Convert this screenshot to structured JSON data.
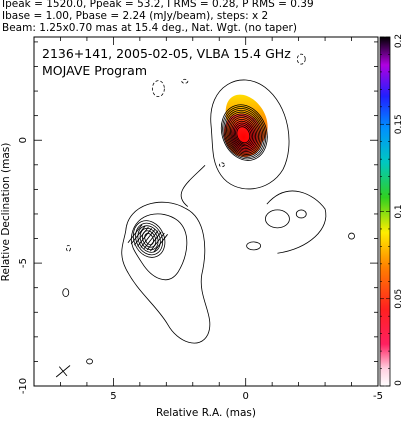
{
  "header": {
    "line1": "Ipeak = 1520.0, Ppeak = 53.2, I RMS = 0.28, P RMS = 0.39",
    "line2": "Ibase = 1.00, Pbase = 2.24 (mJy/beam), steps: x 2",
    "line3": "Beam: 1.25x0.70 mas at 15.4 deg., Nat. Wgt. (no taper)"
  },
  "chart_data": {
    "type": "heatmap",
    "title": "2136+141, 2005-02-05, VLBA 15.4 GHz",
    "subtitle": "MOJAVE Program",
    "xlabel": "Relative R.A. (mas)",
    "ylabel": "Relative Declination (mas)",
    "xlim": [
      8,
      -5
    ],
    "ylim": [
      -10,
      4.2
    ],
    "x_ticks": [
      5,
      0,
      -5
    ],
    "y_ticks": [
      0,
      -5,
      -10
    ],
    "x_tick_labels": [
      "5",
      "0",
      "-5"
    ],
    "y_tick_labels": [
      "0",
      "-5",
      "-10"
    ],
    "colorbar": {
      "min": 0,
      "max": 0.2,
      "ticks": [
        0,
        0.05,
        0.1,
        0.15,
        0.2
      ],
      "tick_labels": [
        "0",
        "0.05",
        "0.1",
        "0.15",
        "0.2"
      ]
    },
    "core": {
      "x": 0.1,
      "y": 0.2
    },
    "secondary_component": {
      "x": 3.7,
      "y": -4.0
    },
    "beam": {
      "major": 1.25,
      "minor": 0.7,
      "pa_deg": 15.4
    }
  }
}
